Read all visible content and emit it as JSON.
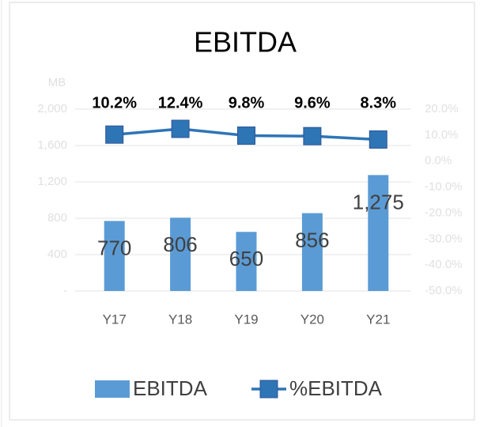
{
  "chart_data": {
    "type": "combo",
    "title": "EBITDA",
    "y_label": "MB",
    "categories": [
      "Y17",
      "Y18",
      "Y19",
      "Y20",
      "Y21"
    ],
    "series": [
      {
        "name": "EBITDA",
        "type": "bar",
        "color": "#5b9bd5",
        "values": [
          770,
          806,
          650,
          856,
          1275
        ],
        "value_labels": [
          "770",
          "806",
          "650",
          "856",
          "1,275"
        ]
      },
      {
        "name": "%EBITDA",
        "type": "line",
        "axis": "y2",
        "color": "#2e75b6",
        "values": [
          10.2,
          12.4,
          9.8,
          9.6,
          8.3
        ],
        "value_labels": [
          "10.2%",
          "12.4%",
          "9.8%",
          "9.6%",
          "8.3%"
        ]
      }
    ],
    "ylim": [
      0,
      2000
    ],
    "yticks": [
      {
        "value": 0,
        "label": "-"
      },
      400,
      800,
      {
        "value": 1200,
        "label": "1,200"
      },
      {
        "value": 1600,
        "label": "1,600"
      },
      {
        "value": 2000,
        "label": "2,000"
      }
    ],
    "y2lim": [
      -50,
      20
    ],
    "y2ticks": [
      {
        "value": -50,
        "label": "-50.0%"
      },
      {
        "value": -40,
        "label": "-40.0%"
      },
      {
        "value": -30,
        "label": "-30.0%"
      },
      {
        "value": -20,
        "label": "-20.0%"
      },
      {
        "value": -10,
        "label": "-10.0%"
      },
      {
        "value": 0,
        "label": "0.0%"
      },
      {
        "value": 10,
        "label": "10.0%"
      },
      {
        "value": 20,
        "label": "20.0%"
      }
    ],
    "grid": true,
    "legend": "bottom"
  }
}
